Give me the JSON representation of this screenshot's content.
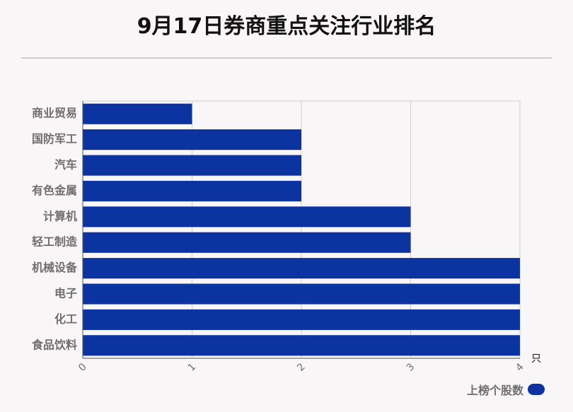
{
  "page": {
    "title": "9月17日券商重点关注行业排名"
  },
  "chart_data": {
    "type": "bar",
    "orientation": "horizontal",
    "title": "9月17日券商重点关注行业排名",
    "categories": [
      "商业贸易",
      "国防军工",
      "汽车",
      "有色金属",
      "计算机",
      "轻工制造",
      "机械设备",
      "电子",
      "化工",
      "食品饮料"
    ],
    "series": [
      {
        "name": "上榜个股数",
        "values": [
          1,
          2,
          2,
          2,
          3,
          3,
          4,
          4,
          4,
          4
        ]
      }
    ],
    "xlim": [
      0,
      4
    ],
    "x_ticks": [
      "0",
      "1",
      "2",
      "3",
      "4"
    ],
    "x_unit": "只",
    "xlabel": "",
    "ylabel": "",
    "grid": true,
    "legend_position": "bottom-right",
    "colors": {
      "bar": "#0c34a0",
      "grid": "#cfcdce",
      "axis": "#555555",
      "label": "#6e6e6e",
      "background": "#f9f6f7"
    }
  }
}
